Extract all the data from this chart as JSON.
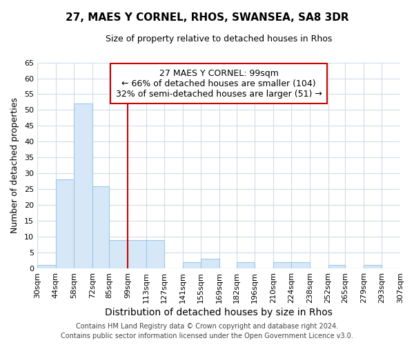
{
  "title": "27, MAES Y CORNEL, RHOS, SWANSEA, SA8 3DR",
  "subtitle": "Size of property relative to detached houses in Rhos",
  "xlabel": "Distribution of detached houses by size in Rhos",
  "ylabel": "Number of detached properties",
  "footnote1": "Contains HM Land Registry data © Crown copyright and database right 2024.",
  "footnote2": "Contains public sector information licensed under the Open Government Licence v3.0.",
  "bar_edges": [
    30,
    44,
    58,
    72,
    85,
    99,
    113,
    127,
    141,
    155,
    169,
    182,
    196,
    210,
    224,
    238,
    252,
    265,
    279,
    293,
    307
  ],
  "bar_heights": [
    1,
    28,
    52,
    26,
    9,
    9,
    9,
    0,
    2,
    3,
    0,
    2,
    0,
    2,
    2,
    0,
    1,
    0,
    1,
    0
  ],
  "bar_color": "#d6e8f7",
  "bar_edgecolor": "#9ec8e8",
  "reference_line_x": 99,
  "ylim": [
    0,
    65
  ],
  "yticks": [
    0,
    5,
    10,
    15,
    20,
    25,
    30,
    35,
    40,
    45,
    50,
    55,
    60,
    65
  ],
  "annotation_line1": "27 MAES Y CORNEL: 99sqm",
  "annotation_line2": "← 66% of detached houses are smaller (104)",
  "annotation_line3": "32% of semi-detached houses are larger (51) →",
  "annotation_box_color": "white",
  "annotation_box_edgecolor": "#cc0000",
  "reference_line_color": "#cc0000",
  "tick_labels": [
    "30sqm",
    "44sqm",
    "58sqm",
    "72sqm",
    "85sqm",
    "99sqm",
    "113sqm",
    "127sqm",
    "141sqm",
    "155sqm",
    "169sqm",
    "182sqm",
    "196sqm",
    "210sqm",
    "224sqm",
    "238sqm",
    "252sqm",
    "265sqm",
    "279sqm",
    "293sqm",
    "307sqm"
  ],
  "background_color": "#ffffff",
  "plot_bg_color": "#ffffff",
  "grid_color": "#d0dce8",
  "title_fontsize": 11,
  "subtitle_fontsize": 9,
  "ylabel_fontsize": 9,
  "xlabel_fontsize": 10,
  "footnote_fontsize": 7,
  "tick_fontsize": 8,
  "annot_fontsize": 9
}
